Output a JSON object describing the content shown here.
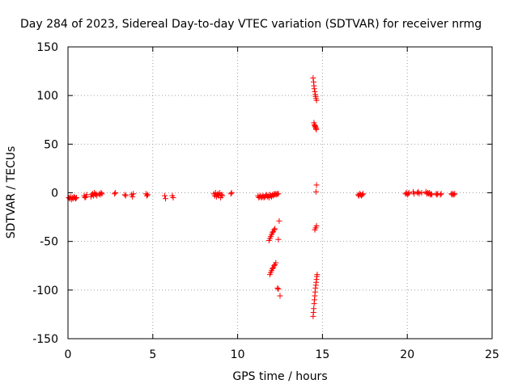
{
  "chart_data": {
    "type": "scatter",
    "title": "Day 284 of 2023, Sidereal Day-to-day VTEC variation (SDTVAR) for receiver nrmg",
    "xlabel": "GPS time / hours",
    "ylabel": "SDTVAR / TECUs",
    "xlim": [
      0,
      25
    ],
    "ylim": [
      -150,
      150
    ],
    "xticks": [
      0,
      5,
      10,
      15,
      20,
      25
    ],
    "xtick_labels": [
      "0",
      "5",
      "10",
      "15",
      "20",
      "25"
    ],
    "yticks": [
      -150,
      -100,
      -50,
      0,
      50,
      100,
      150
    ],
    "ytick_labels": [
      "-150",
      "-100",
      "-50",
      "0",
      "50",
      "100",
      "150"
    ],
    "grid": true,
    "marker": "plus",
    "series": [
      {
        "name": "SDTVAR",
        "color": "#ff0000",
        "points": [
          [
            0.05,
            -5
          ],
          [
            0.1,
            -6
          ],
          [
            0.15,
            -4
          ],
          [
            0.2,
            -7
          ],
          [
            0.25,
            -5
          ],
          [
            0.3,
            -6
          ],
          [
            0.35,
            -4
          ],
          [
            0.4,
            -5
          ],
          [
            0.45,
            -6
          ],
          [
            0.5,
            -5
          ],
          [
            0.95,
            -3
          ],
          [
            1.0,
            -5
          ],
          [
            1.05,
            -4
          ],
          [
            1.1,
            -2
          ],
          [
            1.35,
            -4
          ],
          [
            1.4,
            -2
          ],
          [
            1.45,
            -1
          ],
          [
            1.5,
            -3
          ],
          [
            1.55,
            0
          ],
          [
            1.6,
            -2
          ],
          [
            1.65,
            -1
          ],
          [
            1.7,
            -3
          ],
          [
            1.85,
            -1
          ],
          [
            1.9,
            -2
          ],
          [
            1.95,
            0
          ],
          [
            2.0,
            -1
          ],
          [
            2.75,
            -1
          ],
          [
            2.8,
            0
          ],
          [
            3.35,
            -2
          ],
          [
            3.4,
            -3
          ],
          [
            3.75,
            -2
          ],
          [
            3.8,
            -4
          ],
          [
            3.85,
            -1
          ],
          [
            4.6,
            -1
          ],
          [
            4.65,
            -3
          ],
          [
            4.7,
            -2
          ],
          [
            5.7,
            -3
          ],
          [
            5.75,
            -6
          ],
          [
            6.15,
            -3
          ],
          [
            6.2,
            -5
          ],
          [
            8.6,
            -1
          ],
          [
            8.65,
            -3
          ],
          [
            8.7,
            0
          ],
          [
            8.75,
            -4
          ],
          [
            8.8,
            -2
          ],
          [
            8.85,
            -1
          ],
          [
            8.9,
            -3
          ],
          [
            8.95,
            0
          ],
          [
            9.0,
            -5
          ],
          [
            9.05,
            -2
          ],
          [
            9.1,
            -3
          ],
          [
            9.6,
            -1
          ],
          [
            9.65,
            0
          ],
          [
            11.2,
            -3
          ],
          [
            11.25,
            -5
          ],
          [
            11.3,
            -4
          ],
          [
            11.35,
            -3
          ],
          [
            11.4,
            -5
          ],
          [
            11.45,
            -4
          ],
          [
            11.5,
            -3
          ],
          [
            11.55,
            -5
          ],
          [
            11.6,
            -4
          ],
          [
            11.65,
            -3
          ],
          [
            11.7,
            -2
          ],
          [
            11.75,
            -4
          ],
          [
            11.8,
            -3
          ],
          [
            11.85,
            -5
          ],
          [
            11.9,
            -2
          ],
          [
            11.95,
            -3
          ],
          [
            12.0,
            -4
          ],
          [
            12.05,
            -2
          ],
          [
            12.1,
            -3
          ],
          [
            12.15,
            -1
          ],
          [
            12.2,
            -2
          ],
          [
            12.25,
            -1
          ],
          [
            12.3,
            -2
          ],
          [
            12.35,
            -1
          ],
          [
            12.4,
            -1
          ],
          [
            11.85,
            -49
          ],
          [
            11.9,
            -47
          ],
          [
            11.95,
            -45
          ],
          [
            12.0,
            -43
          ],
          [
            12.05,
            -41
          ],
          [
            12.1,
            -40
          ],
          [
            12.15,
            -38
          ],
          [
            12.2,
            -37
          ],
          [
            12.45,
            -29
          ],
          [
            12.4,
            -48
          ],
          [
            11.9,
            -84
          ],
          [
            11.95,
            -82
          ],
          [
            12.0,
            -80
          ],
          [
            12.05,
            -78
          ],
          [
            12.1,
            -77
          ],
          [
            12.15,
            -75
          ],
          [
            12.2,
            -74
          ],
          [
            12.25,
            -72
          ],
          [
            12.35,
            -98
          ],
          [
            12.4,
            -99
          ],
          [
            12.5,
            -106
          ],
          [
            14.45,
            118
          ],
          [
            14.48,
            114
          ],
          [
            14.5,
            110
          ],
          [
            14.52,
            107
          ],
          [
            14.55,
            104
          ],
          [
            14.58,
            101
          ],
          [
            14.6,
            99
          ],
          [
            14.62,
            97
          ],
          [
            14.65,
            95
          ],
          [
            14.5,
            72
          ],
          [
            14.53,
            70
          ],
          [
            14.56,
            69
          ],
          [
            14.58,
            68
          ],
          [
            14.6,
            67
          ],
          [
            14.62,
            66
          ],
          [
            14.64,
            65
          ],
          [
            14.65,
            8
          ],
          [
            14.62,
            1
          ],
          [
            14.55,
            -38
          ],
          [
            14.6,
            -36
          ],
          [
            14.65,
            -34
          ],
          [
            14.45,
            -127
          ],
          [
            14.47,
            -123
          ],
          [
            14.49,
            -119
          ],
          [
            14.51,
            -114
          ],
          [
            14.53,
            -110
          ],
          [
            14.55,
            -106
          ],
          [
            14.57,
            -102
          ],
          [
            14.59,
            -98
          ],
          [
            14.61,
            -95
          ],
          [
            14.63,
            -92
          ],
          [
            14.65,
            -89
          ],
          [
            14.67,
            -86
          ],
          [
            14.69,
            -84
          ],
          [
            17.1,
            -2
          ],
          [
            17.15,
            -3
          ],
          [
            17.2,
            -1
          ],
          [
            17.25,
            -2
          ],
          [
            17.3,
            -3
          ],
          [
            17.35,
            -2
          ],
          [
            17.4,
            -1
          ],
          [
            19.9,
            -1
          ],
          [
            19.95,
            0
          ],
          [
            20.0,
            -2
          ],
          [
            20.05,
            -1
          ],
          [
            20.1,
            0
          ],
          [
            20.35,
            1
          ],
          [
            20.4,
            -1
          ],
          [
            20.6,
            0
          ],
          [
            20.65,
            1
          ],
          [
            20.7,
            -1
          ],
          [
            20.85,
            0
          ],
          [
            21.1,
            1
          ],
          [
            21.15,
            -1
          ],
          [
            21.2,
            0
          ],
          [
            21.25,
            -1
          ],
          [
            21.3,
            0
          ],
          [
            21.35,
            -2
          ],
          [
            21.4,
            -1
          ],
          [
            21.45,
            -2
          ],
          [
            21.7,
            -1
          ],
          [
            21.75,
            -2
          ],
          [
            21.8,
            -1
          ],
          [
            21.95,
            -2
          ],
          [
            22.0,
            -1
          ],
          [
            22.6,
            -1
          ],
          [
            22.65,
            -2
          ],
          [
            22.7,
            -1
          ],
          [
            22.75,
            -2
          ],
          [
            22.8,
            -1
          ]
        ]
      }
    ]
  }
}
